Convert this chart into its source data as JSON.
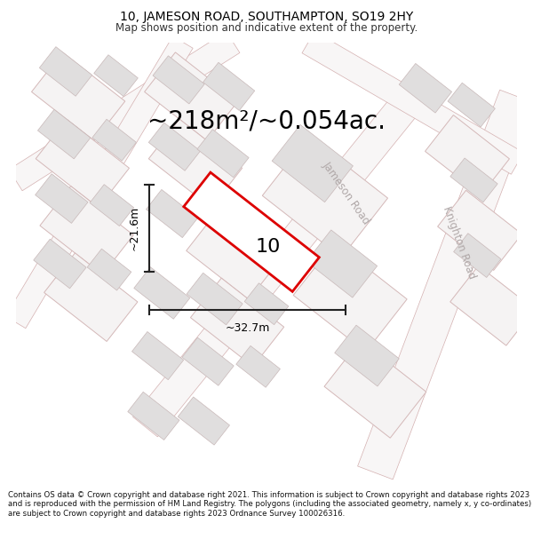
{
  "title": "10, JAMESON ROAD, SOUTHAMPTON, SO19 2HY",
  "subtitle": "Map shows position and indicative extent of the property.",
  "area_text": "~218m²/~0.054ac.",
  "width_label": "~32.7m",
  "height_label": "~21.6m",
  "property_number": "10",
  "road_label_1": "Jameson Road",
  "road_label_2": "Knighton Road",
  "footer": "Contains OS data © Crown copyright and database right 2021. This information is subject to Crown copyright and database rights 2023 and is reproduced with the permission of HM Land Registry. The polygons (including the associated geometry, namely x, y co-ordinates) are subject to Crown copyright and database rights 2023 Ordnance Survey 100026316.",
  "map_bg": "#f2f0f0",
  "building_fill": "#e0dede",
  "building_edge": "#c8b8b8",
  "plot_fill": "#f5f3f3",
  "plot_edge": "#d4b8b8",
  "property_edge": "#dd0000",
  "property_fill": "#ffffff",
  "road_fill": "#f8f6f6",
  "road_edge": "#d4b0b0",
  "title_fontsize": 10,
  "subtitle_fontsize": 8.5,
  "area_fontsize": 20,
  "footer_fontsize": 6.2,
  "road_label_color": "#b0a8a8",
  "dim_color": "#222222"
}
